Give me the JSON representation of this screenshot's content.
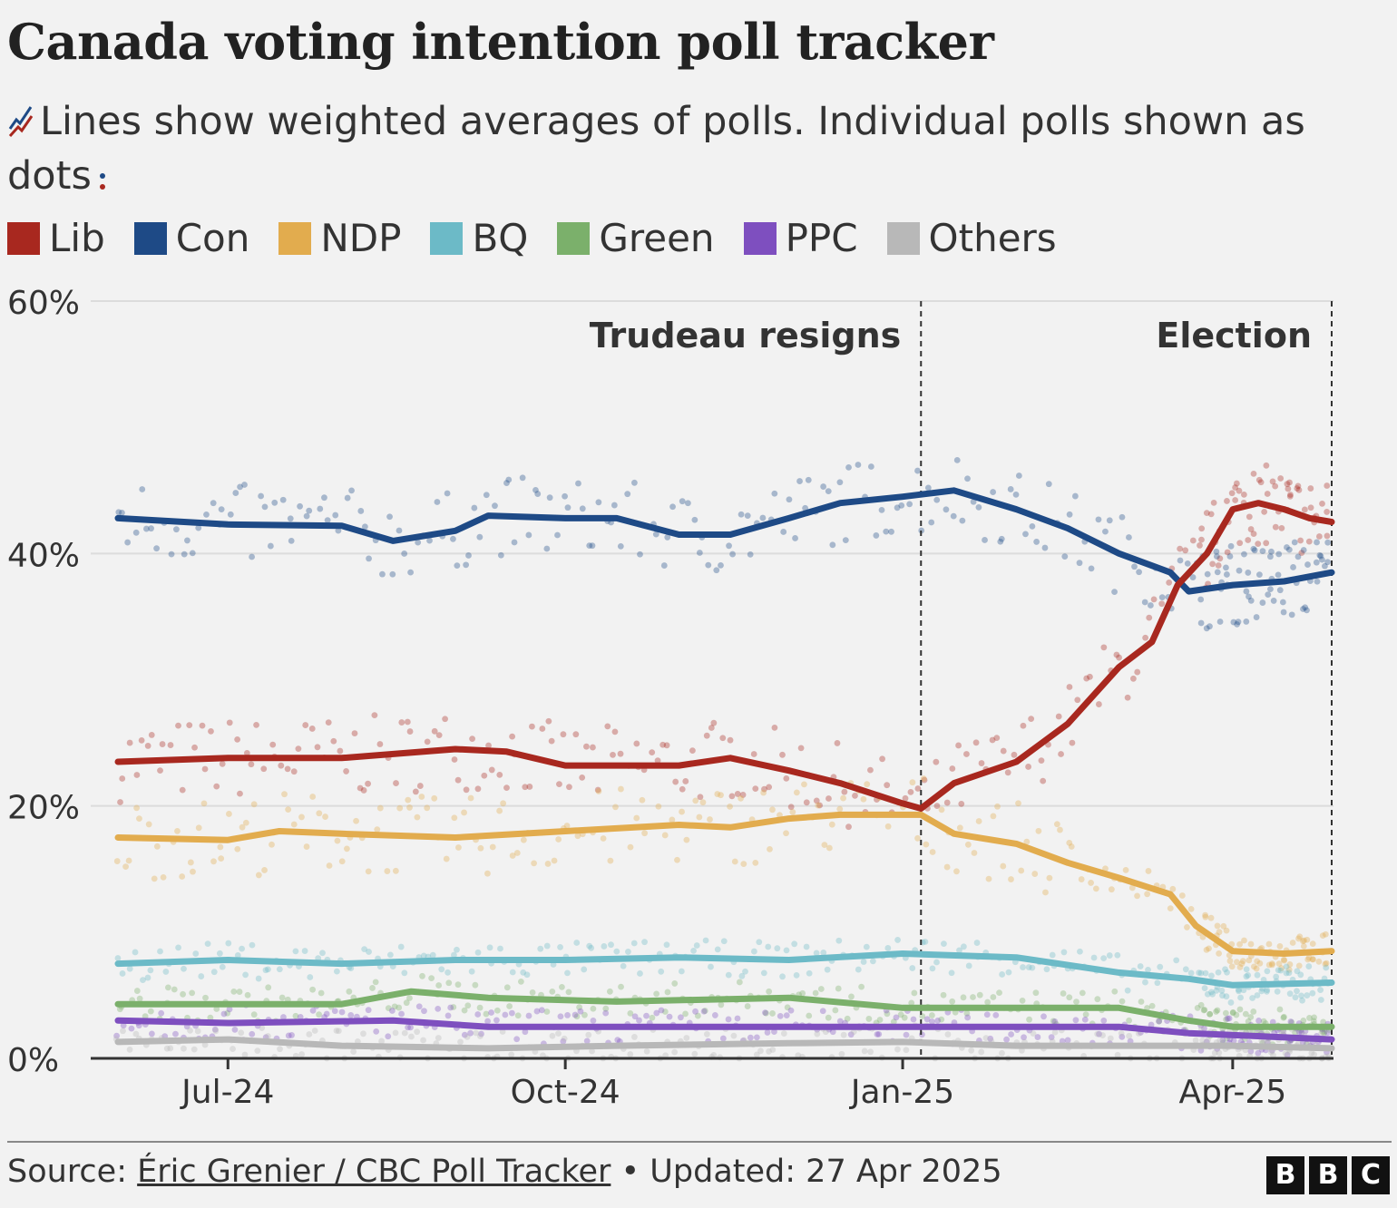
{
  "title": "Canada voting intention poll tracker",
  "subtitle": "Lines show weighted averages of polls. Individual polls shown as dots",
  "legend": [
    {
      "label": "Lib",
      "color": "#a8281f"
    },
    {
      "label": "Con",
      "color": "#1e4a86"
    },
    {
      "label": "NDP",
      "color": "#e2ac4e"
    },
    {
      "label": "BQ",
      "color": "#6cbac7"
    },
    {
      "label": "Green",
      "color": "#7bb06b"
    },
    {
      "label": "PPC",
      "color": "#7e4fbf"
    },
    {
      "label": "Others",
      "color": "#b8b8b8"
    }
  ],
  "chart_data": {
    "type": "line",
    "x_axis": {
      "start": "2024-06-01",
      "end": "2025-04-28",
      "ticks": [
        "Jul-24",
        "Oct-24",
        "Jan-25",
        "Apr-25"
      ]
    },
    "y_axis": {
      "ylim": [
        0,
        60
      ],
      "ticks": [
        "0%",
        "20%",
        "40%",
        "60%"
      ],
      "unit": "%"
    },
    "grid": "horizontal",
    "annotations": [
      {
        "date": "2025-01-06",
        "label": "Trudeau resigns"
      },
      {
        "date": "2025-04-28",
        "label": "Election"
      }
    ],
    "series": [
      {
        "name": "Lib",
        "color": "#a8281f",
        "points": [
          [
            "2024-06-01",
            23.5
          ],
          [
            "2024-07-01",
            23.8
          ],
          [
            "2024-08-01",
            23.8
          ],
          [
            "2024-09-01",
            24.5
          ],
          [
            "2024-09-15",
            24.3
          ],
          [
            "2024-10-01",
            23.2
          ],
          [
            "2024-10-15",
            23.2
          ],
          [
            "2024-11-01",
            23.2
          ],
          [
            "2024-11-15",
            23.8
          ],
          [
            "2024-12-01",
            22.8
          ],
          [
            "2024-12-15",
            21.8
          ],
          [
            "2025-01-01",
            20.2
          ],
          [
            "2025-01-06",
            19.8
          ],
          [
            "2025-01-15",
            21.8
          ],
          [
            "2025-02-01",
            23.5
          ],
          [
            "2025-02-15",
            26.5
          ],
          [
            "2025-03-01",
            31.0
          ],
          [
            "2025-03-10",
            33.0
          ],
          [
            "2025-03-17",
            37.5
          ],
          [
            "2025-03-25",
            40.0
          ],
          [
            "2025-04-01",
            43.5
          ],
          [
            "2025-04-08",
            44.0
          ],
          [
            "2025-04-15",
            43.5
          ],
          [
            "2025-04-22",
            42.8
          ],
          [
            "2025-04-28",
            42.5
          ]
        ]
      },
      {
        "name": "Con",
        "color": "#1e4a86",
        "points": [
          [
            "2024-06-01",
            42.8
          ],
          [
            "2024-07-01",
            42.3
          ],
          [
            "2024-08-01",
            42.2
          ],
          [
            "2024-08-15",
            41.0
          ],
          [
            "2024-09-01",
            41.8
          ],
          [
            "2024-09-10",
            43.0
          ],
          [
            "2024-10-01",
            42.8
          ],
          [
            "2024-10-15",
            42.8
          ],
          [
            "2024-11-01",
            41.5
          ],
          [
            "2024-11-15",
            41.5
          ],
          [
            "2024-12-01",
            42.8
          ],
          [
            "2024-12-15",
            44.0
          ],
          [
            "2025-01-01",
            44.5
          ],
          [
            "2025-01-15",
            45.0
          ],
          [
            "2025-02-01",
            43.5
          ],
          [
            "2025-02-15",
            42.0
          ],
          [
            "2025-03-01",
            40.0
          ],
          [
            "2025-03-15",
            38.5
          ],
          [
            "2025-03-20",
            37.0
          ],
          [
            "2025-04-01",
            37.5
          ],
          [
            "2025-04-15",
            37.8
          ],
          [
            "2025-04-28",
            38.5
          ]
        ]
      },
      {
        "name": "NDP",
        "color": "#e2ac4e",
        "points": [
          [
            "2024-06-01",
            17.5
          ],
          [
            "2024-07-01",
            17.3
          ],
          [
            "2024-07-15",
            18.0
          ],
          [
            "2024-08-01",
            17.8
          ],
          [
            "2024-09-01",
            17.5
          ],
          [
            "2024-10-01",
            18.0
          ],
          [
            "2024-11-01",
            18.5
          ],
          [
            "2024-11-15",
            18.3
          ],
          [
            "2024-12-01",
            19.0
          ],
          [
            "2024-12-15",
            19.3
          ],
          [
            "2025-01-06",
            19.3
          ],
          [
            "2025-01-15",
            17.8
          ],
          [
            "2025-02-01",
            17.0
          ],
          [
            "2025-02-15",
            15.5
          ],
          [
            "2025-03-01",
            14.3
          ],
          [
            "2025-03-15",
            13.0
          ],
          [
            "2025-03-22",
            10.5
          ],
          [
            "2025-04-01",
            8.5
          ],
          [
            "2025-04-15",
            8.3
          ],
          [
            "2025-04-28",
            8.5
          ]
        ]
      },
      {
        "name": "BQ",
        "color": "#6cbac7",
        "points": [
          [
            "2024-06-01",
            7.5
          ],
          [
            "2024-07-01",
            7.8
          ],
          [
            "2024-08-01",
            7.5
          ],
          [
            "2024-09-01",
            7.8
          ],
          [
            "2024-10-01",
            7.8
          ],
          [
            "2024-11-01",
            8.0
          ],
          [
            "2024-12-01",
            7.8
          ],
          [
            "2025-01-01",
            8.3
          ],
          [
            "2025-02-01",
            8.0
          ],
          [
            "2025-03-01",
            6.8
          ],
          [
            "2025-03-20",
            6.3
          ],
          [
            "2025-04-01",
            5.8
          ],
          [
            "2025-04-28",
            6.0
          ]
        ]
      },
      {
        "name": "Green",
        "color": "#7bb06b",
        "points": [
          [
            "2024-06-01",
            4.3
          ],
          [
            "2024-08-01",
            4.3
          ],
          [
            "2024-08-20",
            5.3
          ],
          [
            "2024-09-10",
            4.8
          ],
          [
            "2024-10-15",
            4.5
          ],
          [
            "2024-12-01",
            4.8
          ],
          [
            "2025-01-01",
            4.0
          ],
          [
            "2025-02-01",
            4.0
          ],
          [
            "2025-03-01",
            4.0
          ],
          [
            "2025-03-20",
            3.0
          ],
          [
            "2025-04-01",
            2.5
          ],
          [
            "2025-04-28",
            2.5
          ]
        ]
      },
      {
        "name": "PPC",
        "color": "#7e4fbf",
        "points": [
          [
            "2024-06-01",
            3.0
          ],
          [
            "2024-07-01",
            2.8
          ],
          [
            "2024-08-15",
            3.0
          ],
          [
            "2024-09-10",
            2.5
          ],
          [
            "2024-10-15",
            2.5
          ],
          [
            "2024-12-01",
            2.5
          ],
          [
            "2025-01-01",
            2.5
          ],
          [
            "2025-02-01",
            2.5
          ],
          [
            "2025-03-01",
            2.5
          ],
          [
            "2025-03-20",
            2.0
          ],
          [
            "2025-04-28",
            1.5
          ]
        ]
      },
      {
        "name": "Others",
        "color": "#b8b8b8",
        "points": [
          [
            "2024-06-01",
            1.3
          ],
          [
            "2024-07-01",
            1.5
          ],
          [
            "2024-08-01",
            1.0
          ],
          [
            "2024-09-10",
            0.8
          ],
          [
            "2024-10-15",
            1.0
          ],
          [
            "2024-12-01",
            1.2
          ],
          [
            "2025-01-01",
            1.3
          ],
          [
            "2025-02-01",
            1.0
          ],
          [
            "2025-03-01",
            1.0
          ],
          [
            "2025-04-01",
            1.0
          ],
          [
            "2025-04-28",
            0.8
          ]
        ]
      }
    ]
  },
  "footer": {
    "source_prefix": "Source: ",
    "source_name": "Éric Grenier / CBC Poll Tracker",
    "updated": " • Updated: 27 Apr 2025",
    "logo": [
      "B",
      "B",
      "C"
    ]
  }
}
